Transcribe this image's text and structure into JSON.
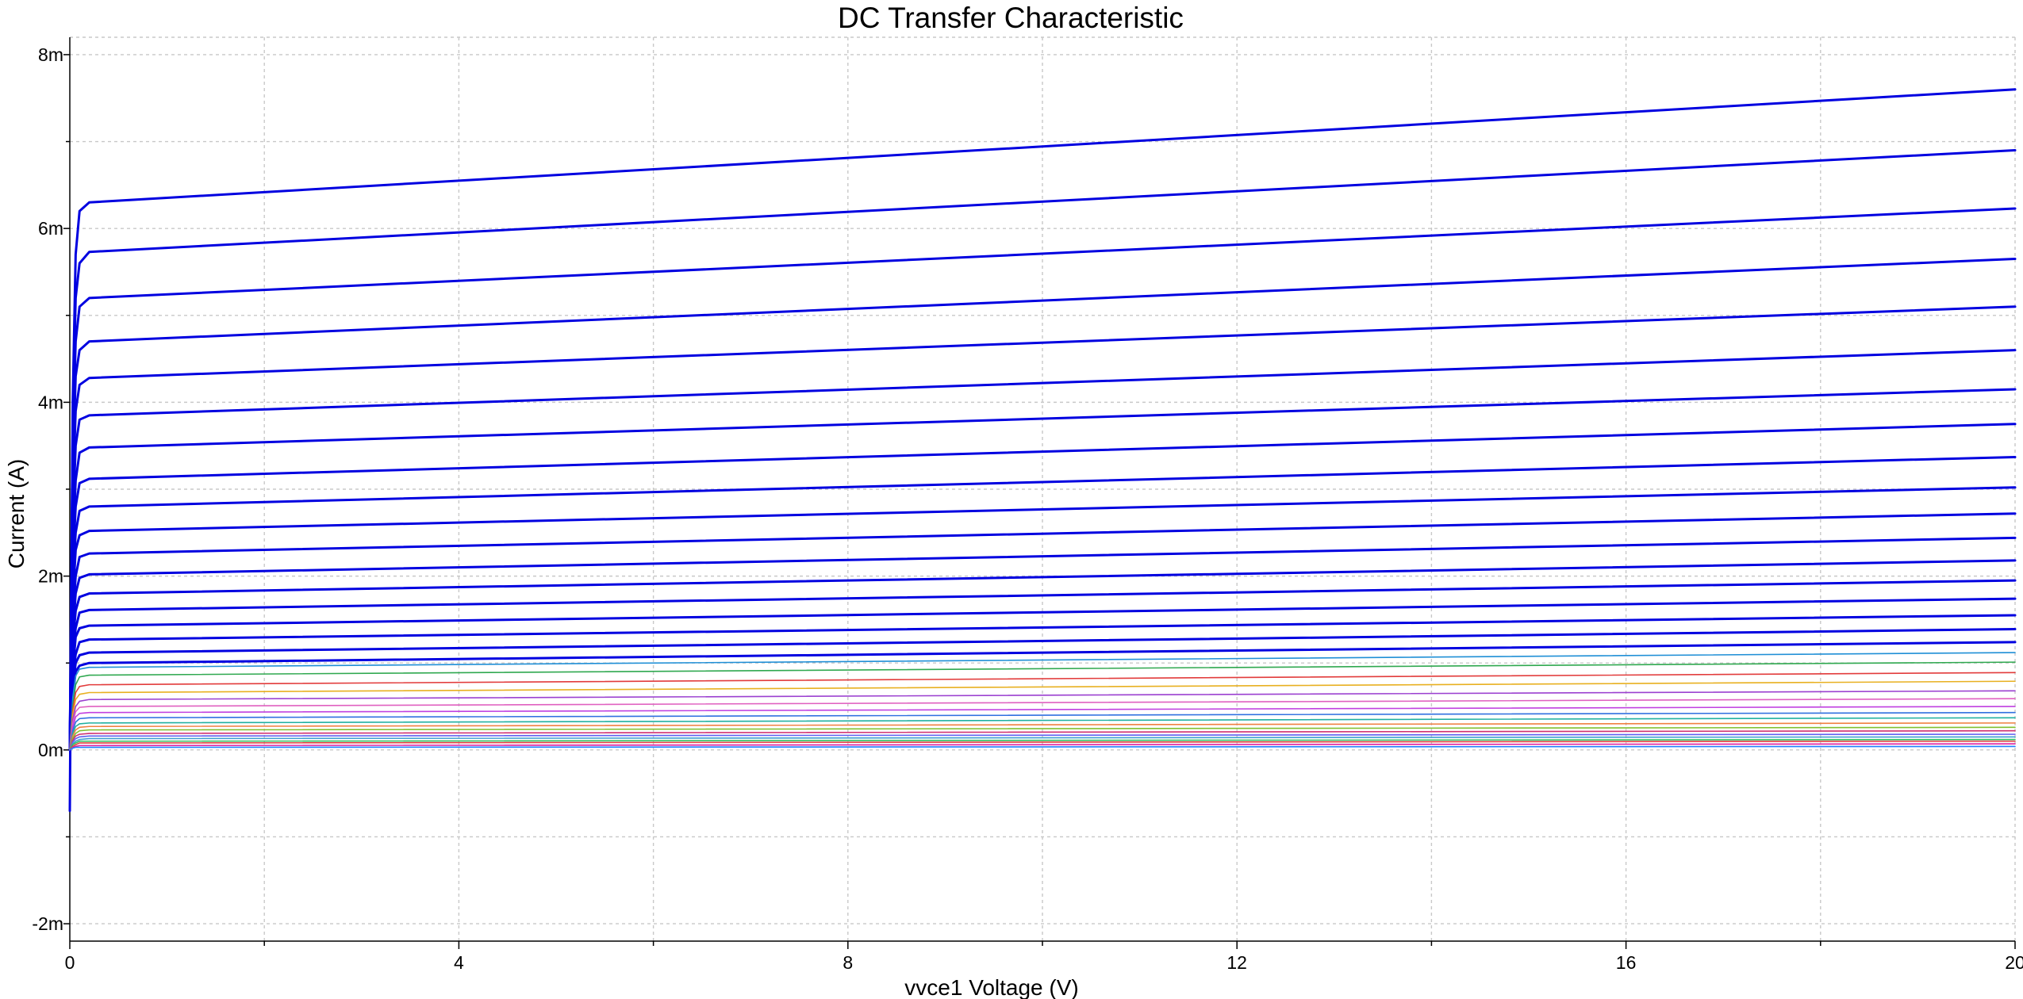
{
  "chart_data": {
    "type": "line",
    "title": "DC Transfer Characteristic",
    "xlabel": "vvce1 Voltage (V)",
    "ylabel": "Current (A)",
    "xlim": [
      0,
      20
    ],
    "ylim": [
      -0.0022,
      0.0082
    ],
    "grid": true,
    "legend": "none",
    "x_ticks": [
      {
        "value": 0,
        "label": "0"
      },
      {
        "value": 4,
        "label": "4"
      },
      {
        "value": 8,
        "label": "8"
      },
      {
        "value": 12,
        "label": "12"
      },
      {
        "value": 16,
        "label": "16"
      },
      {
        "value": 20,
        "label": "20"
      }
    ],
    "x_minor_ticks": [
      2,
      6,
      10,
      14,
      18
    ],
    "y_ticks": [
      {
        "value": -0.002,
        "label": "-2m"
      },
      {
        "value": 0,
        "label": "0m"
      },
      {
        "value": 0.002,
        "label": "2m"
      },
      {
        "value": 0.004,
        "label": "4m"
      },
      {
        "value": 0.006,
        "label": "6m"
      },
      {
        "value": 0.008,
        "label": "8m"
      }
    ],
    "y_minor_ticks": [
      -0.001,
      0.001,
      0.003,
      0.005,
      0.007
    ],
    "series": [
      {
        "color": "#0000e0",
        "values": [
          {
            "x": 0,
            "y": -0.0007
          },
          {
            "x": 0.03,
            "y": 0.004
          },
          {
            "x": 0.06,
            "y": 0.0057
          },
          {
            "x": 0.1,
            "y": 0.0062
          },
          {
            "x": 0.2,
            "y": 0.0063
          },
          {
            "x": 20,
            "y": 0.0076
          }
        ]
      },
      {
        "color": "#0000e0",
        "values": [
          {
            "x": 0,
            "y": 0
          },
          {
            "x": 0.03,
            "y": 0.0038
          },
          {
            "x": 0.06,
            "y": 0.0052
          },
          {
            "x": 0.1,
            "y": 0.0056
          },
          {
            "x": 0.2,
            "y": 0.00573
          },
          {
            "x": 20,
            "y": 0.0069
          }
        ]
      },
      {
        "color": "#0000e0",
        "values": [
          {
            "x": 0,
            "y": 0
          },
          {
            "x": 0.03,
            "y": 0.0035
          },
          {
            "x": 0.06,
            "y": 0.0047
          },
          {
            "x": 0.1,
            "y": 0.0051
          },
          {
            "x": 0.2,
            "y": 0.0052
          },
          {
            "x": 20,
            "y": 0.00623
          }
        ]
      },
      {
        "color": "#0000e0",
        "values": [
          {
            "x": 0,
            "y": 0
          },
          {
            "x": 0.03,
            "y": 0.0032
          },
          {
            "x": 0.06,
            "y": 0.0043
          },
          {
            "x": 0.1,
            "y": 0.0046
          },
          {
            "x": 0.2,
            "y": 0.0047
          },
          {
            "x": 20,
            "y": 0.00565
          }
        ]
      },
      {
        "color": "#0000e0",
        "values": [
          {
            "x": 0,
            "y": 0
          },
          {
            "x": 0.03,
            "y": 0.0029
          },
          {
            "x": 0.06,
            "y": 0.0039
          },
          {
            "x": 0.1,
            "y": 0.0042
          },
          {
            "x": 0.2,
            "y": 0.00428
          },
          {
            "x": 20,
            "y": 0.0051
          }
        ]
      },
      {
        "color": "#0000e0",
        "values": [
          {
            "x": 0,
            "y": 0
          },
          {
            "x": 0.03,
            "y": 0.0026
          },
          {
            "x": 0.06,
            "y": 0.0035
          },
          {
            "x": 0.1,
            "y": 0.0038
          },
          {
            "x": 0.2,
            "y": 0.00385
          },
          {
            "x": 20,
            "y": 0.0046
          }
        ]
      },
      {
        "color": "#0000e0",
        "values": [
          {
            "x": 0,
            "y": 0
          },
          {
            "x": 0.03,
            "y": 0.0023
          },
          {
            "x": 0.06,
            "y": 0.0031
          },
          {
            "x": 0.1,
            "y": 0.00342
          },
          {
            "x": 0.2,
            "y": 0.00348
          },
          {
            "x": 20,
            "y": 0.00415
          }
        ]
      },
      {
        "color": "#0000e0",
        "values": [
          {
            "x": 0,
            "y": 0
          },
          {
            "x": 0.03,
            "y": 0.0021
          },
          {
            "x": 0.06,
            "y": 0.0028
          },
          {
            "x": 0.1,
            "y": 0.00307
          },
          {
            "x": 0.2,
            "y": 0.00312
          },
          {
            "x": 20,
            "y": 0.00375
          }
        ]
      },
      {
        "color": "#0000e0",
        "values": [
          {
            "x": 0,
            "y": 0
          },
          {
            "x": 0.03,
            "y": 0.0019
          },
          {
            "x": 0.06,
            "y": 0.0025
          },
          {
            "x": 0.1,
            "y": 0.00275
          },
          {
            "x": 0.2,
            "y": 0.0028
          },
          {
            "x": 20,
            "y": 0.00337
          }
        ]
      },
      {
        "color": "#0000e0",
        "values": [
          {
            "x": 0,
            "y": 0
          },
          {
            "x": 0.03,
            "y": 0.0017
          },
          {
            "x": 0.06,
            "y": 0.0023
          },
          {
            "x": 0.1,
            "y": 0.00247
          },
          {
            "x": 0.2,
            "y": 0.00252
          },
          {
            "x": 20,
            "y": 0.00302
          }
        ]
      },
      {
        "color": "#0000e0",
        "values": [
          {
            "x": 0,
            "y": 0
          },
          {
            "x": 0.03,
            "y": 0.0015
          },
          {
            "x": 0.06,
            "y": 0.002
          },
          {
            "x": 0.1,
            "y": 0.00222
          },
          {
            "x": 0.2,
            "y": 0.00226
          },
          {
            "x": 20,
            "y": 0.00272
          }
        ]
      },
      {
        "color": "#0000e0",
        "values": [
          {
            "x": 0,
            "y": 0
          },
          {
            "x": 0.03,
            "y": 0.0013
          },
          {
            "x": 0.06,
            "y": 0.0018
          },
          {
            "x": 0.1,
            "y": 0.00198
          },
          {
            "x": 0.2,
            "y": 0.00202
          },
          {
            "x": 20,
            "y": 0.00244
          }
        ]
      },
      {
        "color": "#0000e0",
        "values": [
          {
            "x": 0,
            "y": 0
          },
          {
            "x": 0.03,
            "y": 0.0012
          },
          {
            "x": 0.06,
            "y": 0.0016
          },
          {
            "x": 0.1,
            "y": 0.00176
          },
          {
            "x": 0.2,
            "y": 0.0018
          },
          {
            "x": 20,
            "y": 0.00218
          }
        ]
      },
      {
        "color": "#0000e0",
        "values": [
          {
            "x": 0,
            "y": 0
          },
          {
            "x": 0.03,
            "y": 0.0011
          },
          {
            "x": 0.06,
            "y": 0.0014
          },
          {
            "x": 0.1,
            "y": 0.00158
          },
          {
            "x": 0.2,
            "y": 0.00161
          },
          {
            "x": 20,
            "y": 0.00195
          }
        ]
      },
      {
        "color": "#0000e0",
        "values": [
          {
            "x": 0,
            "y": 0
          },
          {
            "x": 0.03,
            "y": 0.0009
          },
          {
            "x": 0.06,
            "y": 0.0013
          },
          {
            "x": 0.1,
            "y": 0.0014
          },
          {
            "x": 0.2,
            "y": 0.00143
          },
          {
            "x": 20,
            "y": 0.00174
          }
        ]
      },
      {
        "color": "#0000e0",
        "values": [
          {
            "x": 0,
            "y": 0
          },
          {
            "x": 0.03,
            "y": 0.0008
          },
          {
            "x": 0.06,
            "y": 0.0011
          },
          {
            "x": 0.1,
            "y": 0.00124
          },
          {
            "x": 0.2,
            "y": 0.00127
          },
          {
            "x": 20,
            "y": 0.00155
          }
        ]
      },
      {
        "color": "#0000e0",
        "values": [
          {
            "x": 0,
            "y": 0
          },
          {
            "x": 0.03,
            "y": 0.0007
          },
          {
            "x": 0.06,
            "y": 0.001
          },
          {
            "x": 0.1,
            "y": 0.00109
          },
          {
            "x": 0.2,
            "y": 0.00112
          },
          {
            "x": 20,
            "y": 0.00139
          }
        ]
      },
      {
        "color": "#0000e0",
        "values": [
          {
            "x": 0,
            "y": 0
          },
          {
            "x": 0.03,
            "y": 0.0006
          },
          {
            "x": 0.06,
            "y": 0.0009
          },
          {
            "x": 0.1,
            "y": 0.00097
          },
          {
            "x": 0.2,
            "y": 0.001
          },
          {
            "x": 20,
            "y": 0.00124
          }
        ]
      },
      {
        "color": "#1f8fd6",
        "values": [
          {
            "x": 0,
            "y": 0
          },
          {
            "x": 0.03,
            "y": 0.0006
          },
          {
            "x": 0.06,
            "y": 0.00085
          },
          {
            "x": 0.1,
            "y": 0.00093
          },
          {
            "x": 0.2,
            "y": 0.00095
          },
          {
            "x": 20,
            "y": 0.00112
          }
        ]
      },
      {
        "color": "#2fa84f",
        "values": [
          {
            "x": 0,
            "y": 0
          },
          {
            "x": 0.03,
            "y": 0.0005
          },
          {
            "x": 0.06,
            "y": 0.00075
          },
          {
            "x": 0.1,
            "y": 0.00084
          },
          {
            "x": 0.2,
            "y": 0.00086
          },
          {
            "x": 20,
            "y": 0.00101
          }
        ]
      },
      {
        "color": "#e23b3b",
        "values": [
          {
            "x": 0,
            "y": 0
          },
          {
            "x": 0.03,
            "y": 0.00045
          },
          {
            "x": 0.06,
            "y": 0.00066
          },
          {
            "x": 0.1,
            "y": 0.00073
          },
          {
            "x": 0.2,
            "y": 0.00075
          },
          {
            "x": 20,
            "y": 0.00089
          }
        ]
      },
      {
        "color": "#e8b020",
        "values": [
          {
            "x": 0,
            "y": 0
          },
          {
            "x": 0.03,
            "y": 0.0004
          },
          {
            "x": 0.06,
            "y": 0.00058
          },
          {
            "x": 0.1,
            "y": 0.00064
          },
          {
            "x": 0.2,
            "y": 0.00066
          },
          {
            "x": 20,
            "y": 0.00079
          }
        ]
      },
      {
        "color": "#9b40d0",
        "values": [
          {
            "x": 0,
            "y": 0
          },
          {
            "x": 0.03,
            "y": 0.00035
          },
          {
            "x": 0.06,
            "y": 0.0005
          },
          {
            "x": 0.1,
            "y": 0.00056
          },
          {
            "x": 0.2,
            "y": 0.00058
          },
          {
            "x": 20,
            "y": 0.00068
          }
        ]
      },
      {
        "color": "#e060c0",
        "values": [
          {
            "x": 0,
            "y": 0
          },
          {
            "x": 0.03,
            "y": 0.0003
          },
          {
            "x": 0.06,
            "y": 0.00044
          },
          {
            "x": 0.1,
            "y": 0.00049
          },
          {
            "x": 0.2,
            "y": 0.0005
          },
          {
            "x": 20,
            "y": 0.00059
          }
        ]
      },
      {
        "color": "#c040e0",
        "values": [
          {
            "x": 0,
            "y": 0
          },
          {
            "x": 0.03,
            "y": 0.00026
          },
          {
            "x": 0.06,
            "y": 0.00038
          },
          {
            "x": 0.1,
            "y": 0.00042
          },
          {
            "x": 0.2,
            "y": 0.00043
          },
          {
            "x": 20,
            "y": 0.0005
          }
        ]
      },
      {
        "color": "#3070e0",
        "values": [
          {
            "x": 0,
            "y": 0
          },
          {
            "x": 0.03,
            "y": 0.00022
          },
          {
            "x": 0.06,
            "y": 0.00032
          },
          {
            "x": 0.1,
            "y": 0.00036
          },
          {
            "x": 0.2,
            "y": 0.00037
          },
          {
            "x": 20,
            "y": 0.00043
          }
        ]
      },
      {
        "color": "#20b0a0",
        "values": [
          {
            "x": 0,
            "y": 0
          },
          {
            "x": 0.03,
            "y": 0.00019
          },
          {
            "x": 0.06,
            "y": 0.00027
          },
          {
            "x": 0.1,
            "y": 0.0003
          },
          {
            "x": 0.2,
            "y": 0.00031
          },
          {
            "x": 20,
            "y": 0.00037
          }
        ]
      },
      {
        "color": "#f08040",
        "values": [
          {
            "x": 0,
            "y": 0
          },
          {
            "x": 0.03,
            "y": 0.00016
          },
          {
            "x": 0.06,
            "y": 0.00023
          },
          {
            "x": 0.1,
            "y": 0.00026
          },
          {
            "x": 0.2,
            "y": 0.00027
          },
          {
            "x": 20,
            "y": 0.00031
          }
        ]
      },
      {
        "color": "#80c030",
        "values": [
          {
            "x": 0,
            "y": 0
          },
          {
            "x": 0.03,
            "y": 0.00013
          },
          {
            "x": 0.06,
            "y": 0.00019
          },
          {
            "x": 0.1,
            "y": 0.00022
          },
          {
            "x": 0.2,
            "y": 0.00023
          },
          {
            "x": 20,
            "y": 0.00026
          }
        ]
      },
      {
        "color": "#d03070",
        "values": [
          {
            "x": 0,
            "y": 0
          },
          {
            "x": 0.03,
            "y": 0.00011
          },
          {
            "x": 0.06,
            "y": 0.00016
          },
          {
            "x": 0.1,
            "y": 0.00018
          },
          {
            "x": 0.2,
            "y": 0.00019
          },
          {
            "x": 20,
            "y": 0.00022
          }
        ]
      },
      {
        "color": "#6060f0",
        "values": [
          {
            "x": 0,
            "y": 0
          },
          {
            "x": 0.03,
            "y": 9e-05
          },
          {
            "x": 0.06,
            "y": 0.00013
          },
          {
            "x": 0.1,
            "y": 0.00015
          },
          {
            "x": 0.2,
            "y": 0.00016
          },
          {
            "x": 20,
            "y": 0.00018
          }
        ]
      },
      {
        "color": "#40a0d0",
        "values": [
          {
            "x": 0,
            "y": 0
          },
          {
            "x": 0.03,
            "y": 7e-05
          },
          {
            "x": 0.06,
            "y": 0.0001
          },
          {
            "x": 0.1,
            "y": 0.00012
          },
          {
            "x": 0.2,
            "y": 0.00013
          },
          {
            "x": 20,
            "y": 0.00015
          }
        ]
      },
      {
        "color": "#30c060",
        "values": [
          {
            "x": 0,
            "y": 0
          },
          {
            "x": 0.03,
            "y": 6e-05
          },
          {
            "x": 0.06,
            "y": 8e-05
          },
          {
            "x": 0.1,
            "y": 0.0001
          },
          {
            "x": 0.2,
            "y": 0.0001
          },
          {
            "x": 20,
            "y": 0.00012
          }
        ]
      },
      {
        "color": "#e04040",
        "values": [
          {
            "x": 0,
            "y": 0
          },
          {
            "x": 0.03,
            "y": 4e-05
          },
          {
            "x": 0.06,
            "y": 6e-05
          },
          {
            "x": 0.1,
            "y": 8e-05
          },
          {
            "x": 0.2,
            "y": 8e-05
          },
          {
            "x": 20,
            "y": 0.0001
          }
        ]
      },
      {
        "color": "#e020a0",
        "values": [
          {
            "x": 0,
            "y": 0
          },
          {
            "x": 0.03,
            "y": 3e-05
          },
          {
            "x": 0.06,
            "y": 4e-05
          },
          {
            "x": 0.1,
            "y": 5e-05
          },
          {
            "x": 0.2,
            "y": 5e-05
          },
          {
            "x": 20,
            "y": 7e-05
          }
        ]
      },
      {
        "color": "#2080ff",
        "values": [
          {
            "x": 0,
            "y": 0
          },
          {
            "x": 0.03,
            "y": 2e-05
          },
          {
            "x": 0.06,
            "y": 3e-05
          },
          {
            "x": 0.1,
            "y": 3e-05
          },
          {
            "x": 0.2,
            "y": 3e-05
          },
          {
            "x": 20,
            "y": 4e-05
          }
        ]
      }
    ]
  }
}
